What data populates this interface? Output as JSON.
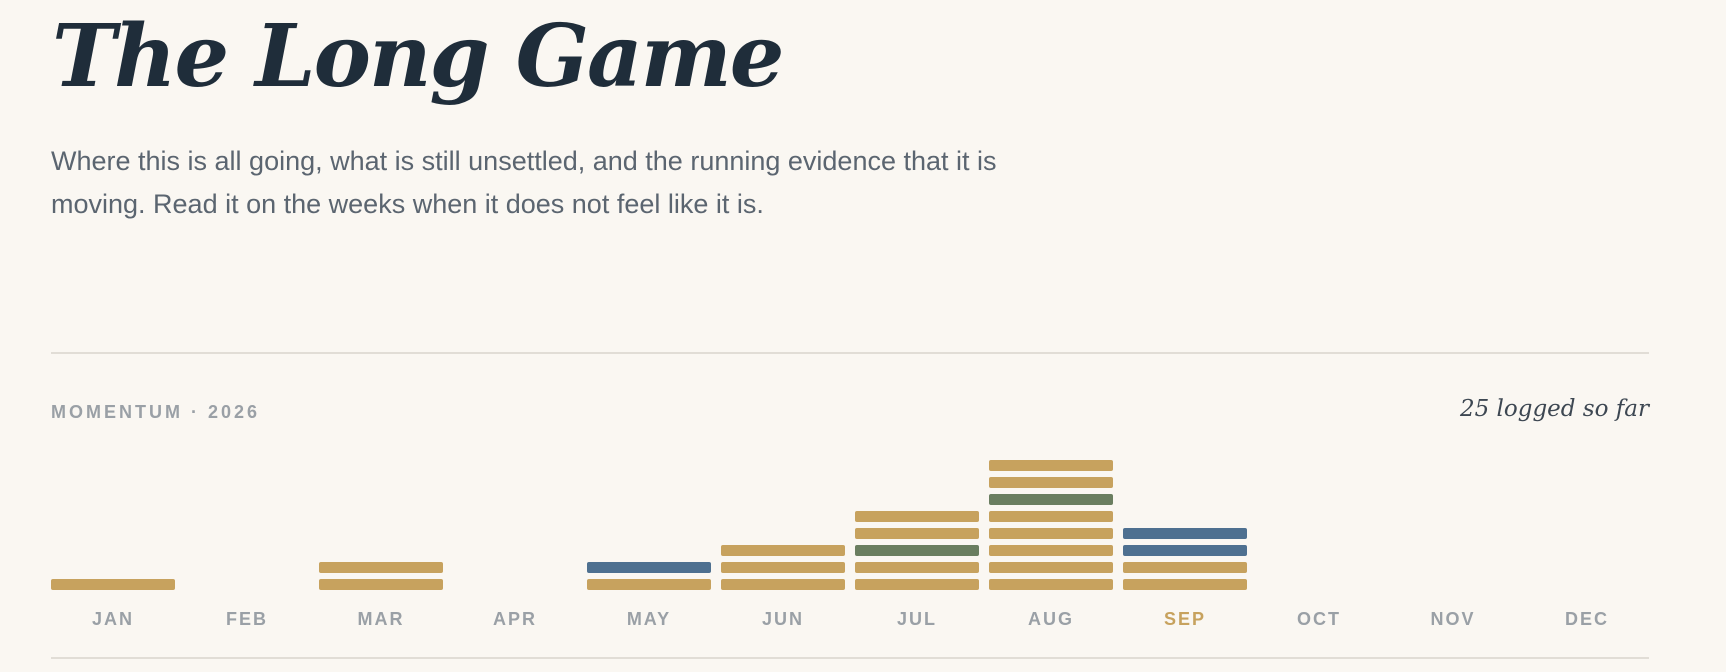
{
  "page": {
    "title": "The Long Game",
    "subtitle": "Where this is all going, what is still unsettled, and the running evidence that it is moving. Read it on the weeks when it does not feel like it is."
  },
  "momentum": {
    "label": "MOMENTUM · 2026",
    "logged_note": "25 logged so far"
  },
  "colors": {
    "background": "#faf7f2",
    "gold": "#c7a25e",
    "blue": "#4e7090",
    "green": "#6a7e60",
    "axis_text": "#9aa0a6",
    "current_month": "#c7a25e",
    "rule": "#e1ddd6"
  },
  "chart_data": {
    "type": "bar",
    "stacked": true,
    "year": "2026",
    "categories": [
      "JAN",
      "FEB",
      "MAR",
      "APR",
      "MAY",
      "JUN",
      "JUL",
      "AUG",
      "SEP",
      "OCT",
      "NOV",
      "DEC"
    ],
    "current_month": "SEP",
    "total": 25,
    "series_colors": [
      "#c7a25e",
      "#4e7090",
      "#6a7e60"
    ],
    "stacks": [
      [
        "gold"
      ],
      [],
      [
        "gold",
        "gold"
      ],
      [],
      [
        "gold",
        "blue"
      ],
      [
        "gold",
        "gold",
        "gold"
      ],
      [
        "gold",
        "gold",
        "green",
        "gold",
        "gold"
      ],
      [
        "gold",
        "gold",
        "gold",
        "gold",
        "gold",
        "green",
        "gold",
        "gold"
      ],
      [
        "gold",
        "gold",
        "blue",
        "blue"
      ],
      [],
      [],
      []
    ],
    "values": [
      1,
      0,
      2,
      0,
      2,
      3,
      5,
      8,
      4,
      0,
      0,
      0
    ],
    "grid": false,
    "legend": "none"
  }
}
